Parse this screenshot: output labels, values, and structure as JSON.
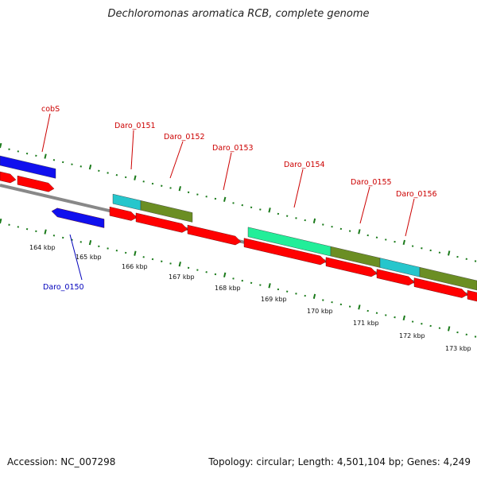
{
  "title": "Dechloromonas aromatica RCB, complete genome",
  "accession": "Accession: NC_007298",
  "summary": "Topology: circular; Length: 4,501,104 bp; Genes: 4,249",
  "colors": {
    "cds_forward": "#ff0000",
    "cds_reverse": "#1010ee",
    "label_forward": "#cc0000",
    "label_reverse": "#0000bb",
    "backbone": "#888888",
    "tick": "#1a7a1a",
    "cyan": "#26c6cc",
    "olive": "#6b8e23",
    "mint": "#22ee99"
  },
  "gene_labels": [
    {
      "name": "cobS",
      "strand": "forward"
    },
    {
      "name": "Daro_0151",
      "strand": "forward"
    },
    {
      "name": "Daro_0152",
      "strand": "forward"
    },
    {
      "name": "Daro_0153",
      "strand": "forward"
    },
    {
      "name": "Daro_0154",
      "strand": "forward"
    },
    {
      "name": "Daro_0155",
      "strand": "forward"
    },
    {
      "name": "Daro_0156",
      "strand": "forward"
    },
    {
      "name": "Daro_0150",
      "strand": "reverse"
    }
  ],
  "kbp_ticks": [
    "164 kbp",
    "165 kbp",
    "166 kbp",
    "167 kbp",
    "168 kbp",
    "169 kbp",
    "170 kbp",
    "171 kbp",
    "172 kbp",
    "173 kbp"
  ]
}
